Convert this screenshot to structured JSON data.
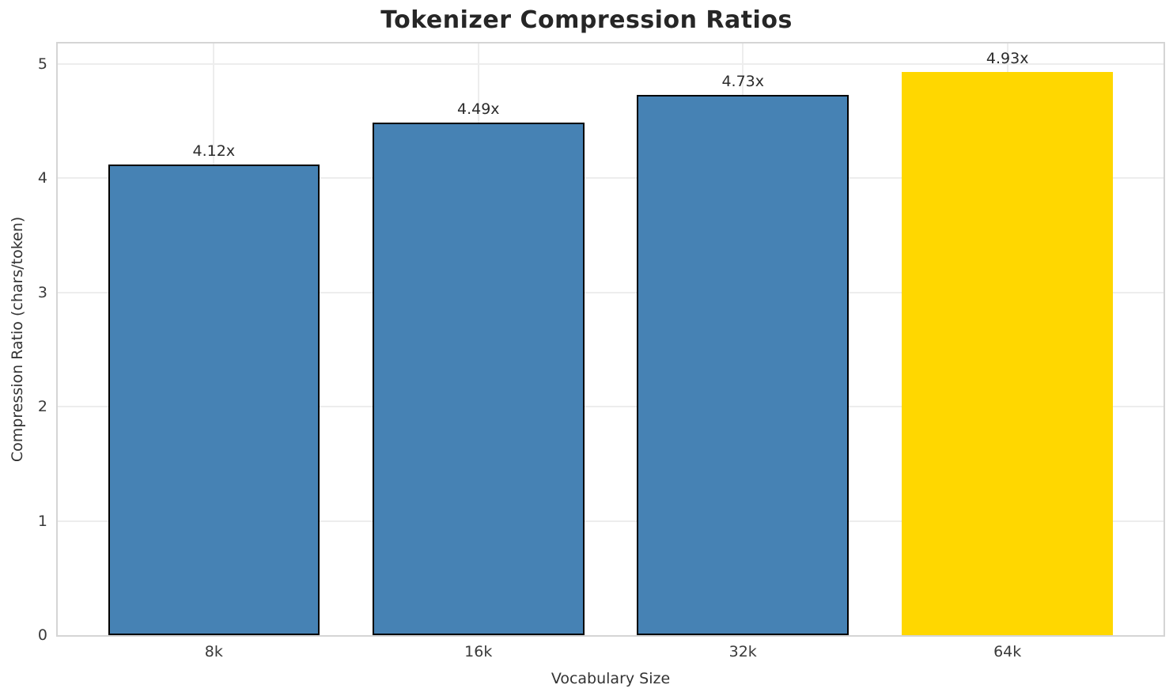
{
  "chart_data": {
    "type": "bar",
    "title": "Tokenizer Compression Ratios",
    "xlabel": "Vocabulary Size",
    "ylabel": "Compression Ratio (chars/token)",
    "categories": [
      "8k",
      "16k",
      "32k",
      "64k"
    ],
    "values": [
      4.12,
      4.49,
      4.73,
      4.93
    ],
    "bar_labels": [
      "4.12x",
      "4.49x",
      "4.73x",
      "4.93x"
    ],
    "y_ticks": [
      "0",
      "1",
      "2",
      "3",
      "4",
      "5"
    ],
    "y_tick_values": [
      0,
      1,
      2,
      3,
      4,
      5
    ],
    "ylim": [
      0,
      5.18
    ],
    "grid": true,
    "legend": false,
    "highlight_index": 3,
    "colors": {
      "bar_default": "#4682B4",
      "bar_highlight": "#FFD700",
      "bar_edge": "#000000",
      "grid": "#ededed",
      "spine": "#d5d5d5",
      "title_text": "#262626",
      "label_text": "#333333",
      "tick_text": "#3a3a3a"
    }
  }
}
